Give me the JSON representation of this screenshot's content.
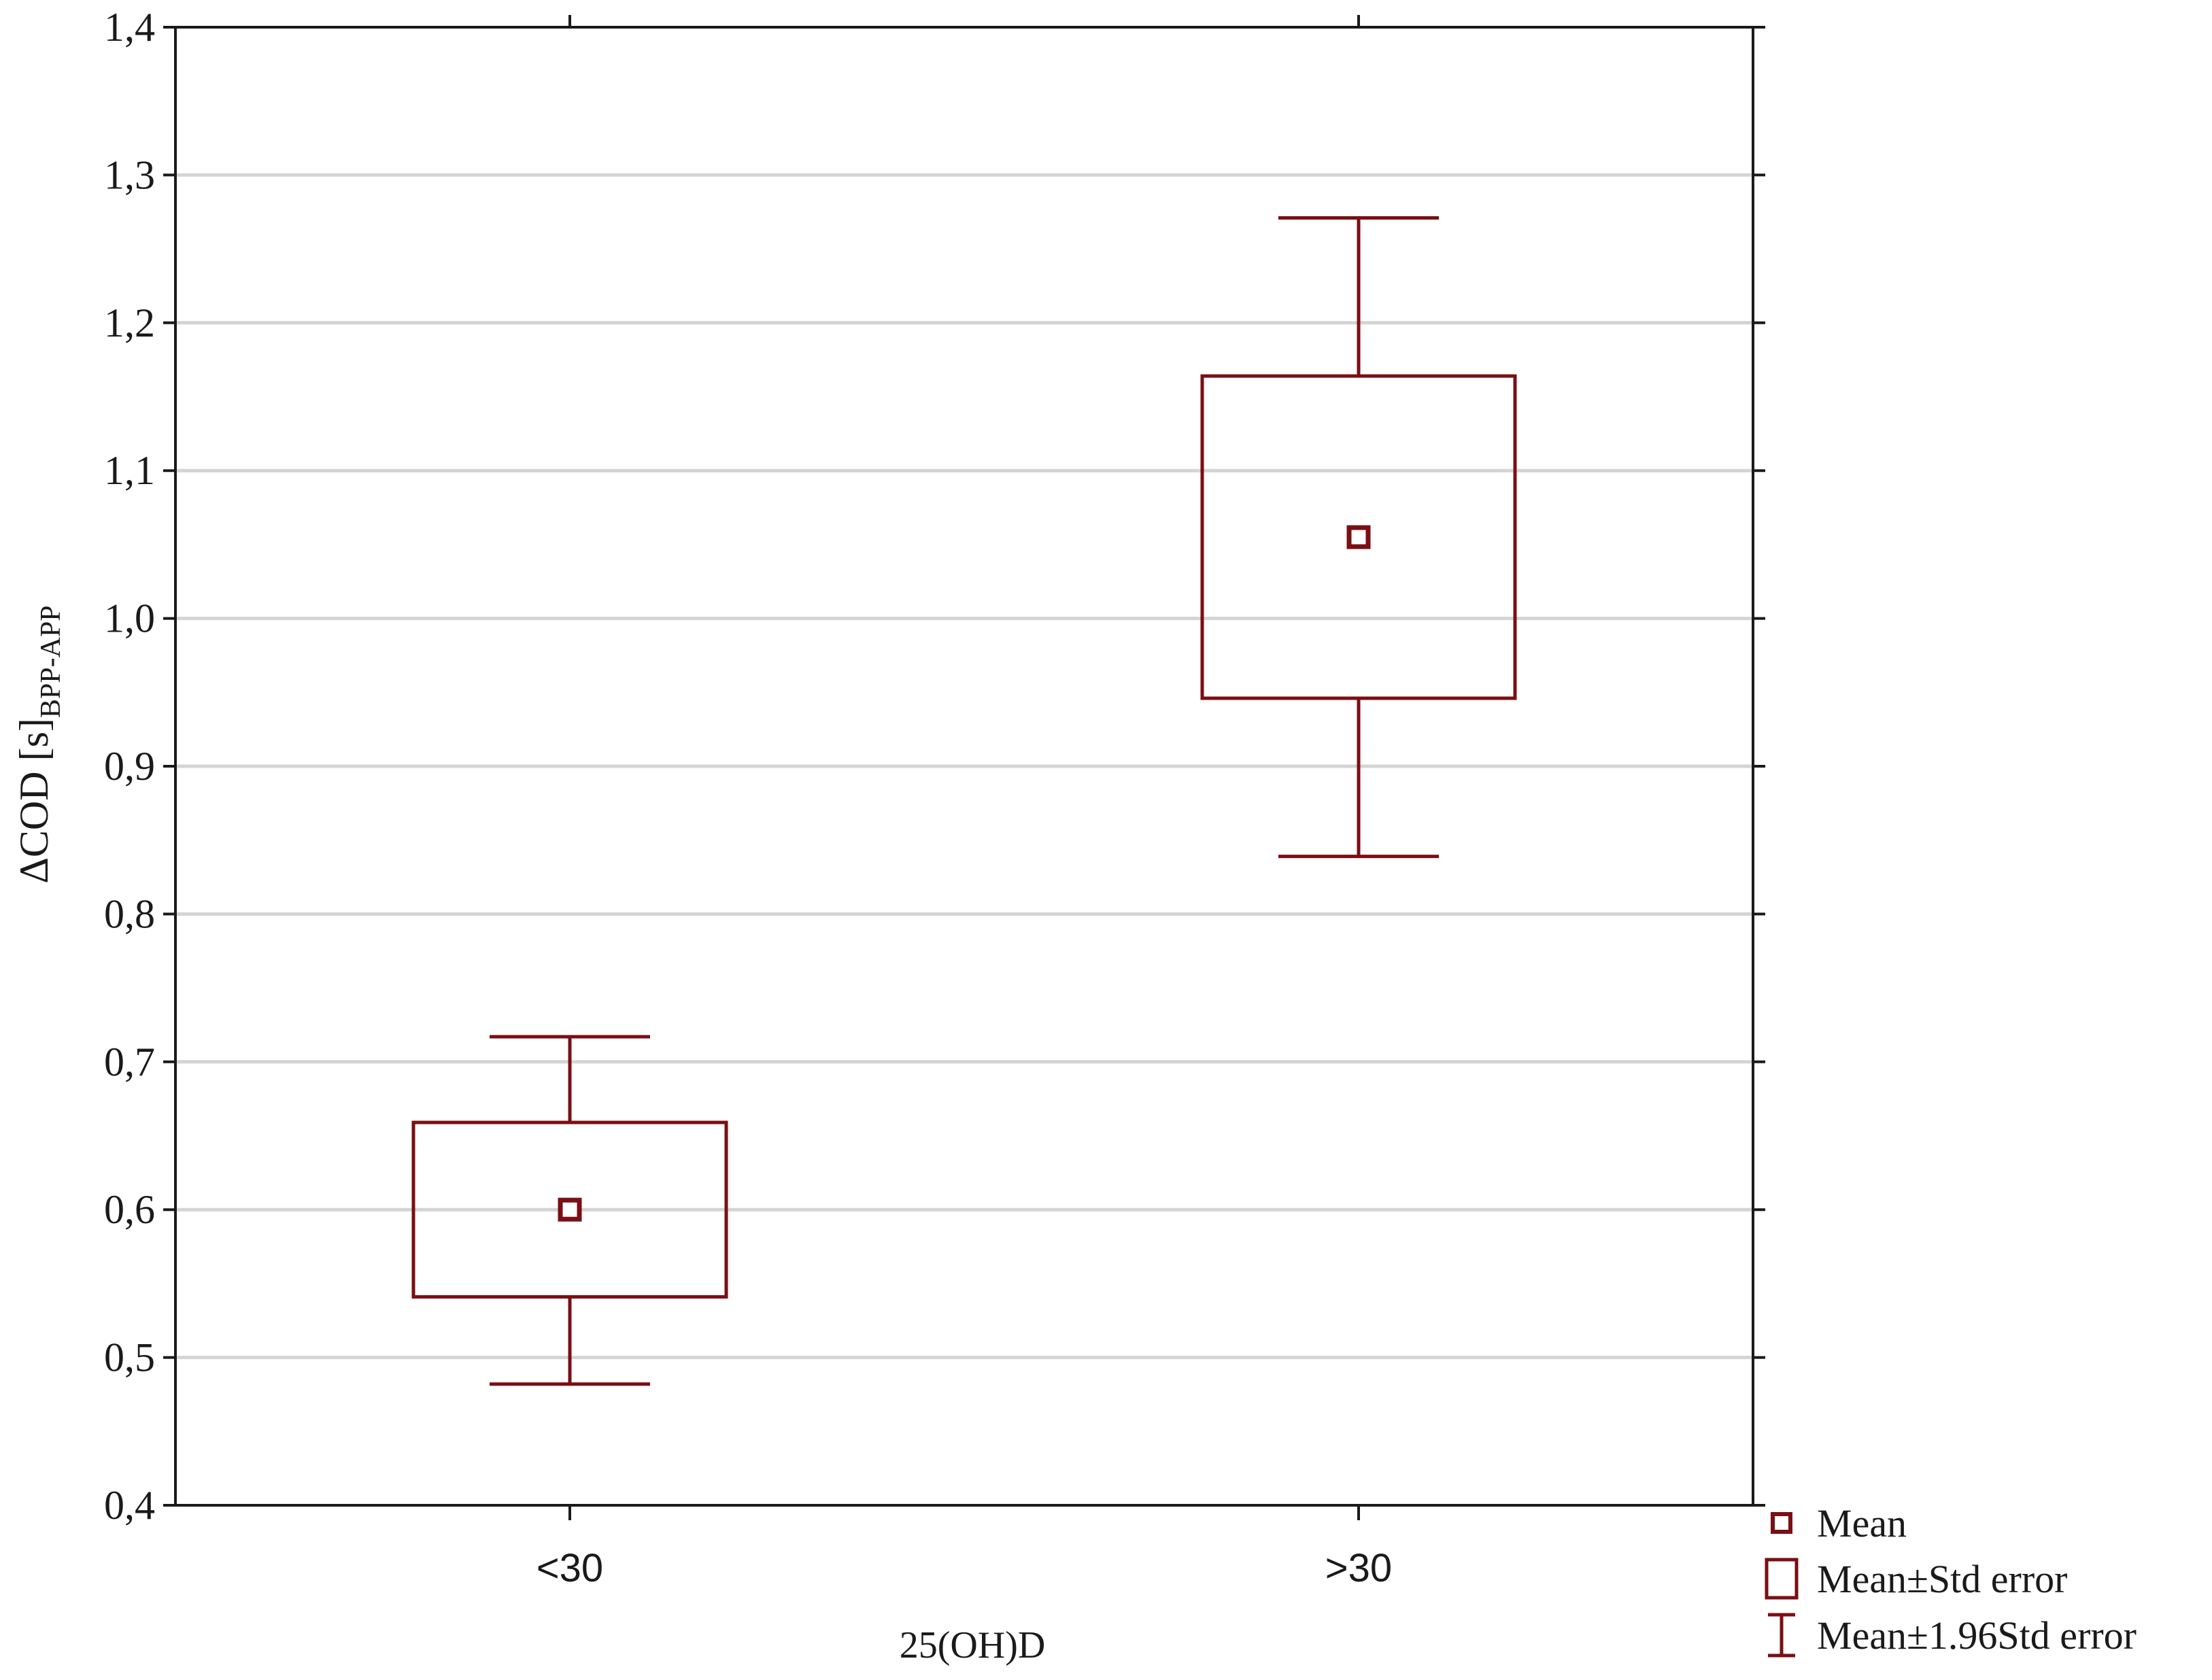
{
  "chart_data": {
    "type": "box",
    "xlabel": "25(OH)D",
    "ylabel": {
      "main": "ΔCOD [s]",
      "subscript": "BPP-APP"
    },
    "ylim": [
      0.4,
      1.4
    ],
    "yticks": [
      "0,4",
      "0,5",
      "0,6",
      "0,7",
      "0,8",
      "0,9",
      "1,0",
      "1,1",
      "1,2",
      "1,3",
      "1,4"
    ],
    "ytick_values": [
      0.4,
      0.5,
      0.6,
      0.7,
      0.8,
      0.9,
      1.0,
      1.1,
      1.2,
      1.3,
      1.4
    ],
    "grid": true,
    "categories": [
      "<30",
      ">30"
    ],
    "groups": [
      {
        "category": "<30",
        "mean": 0.6,
        "se_low": 0.541,
        "se_high": 0.659,
        "ci_low": 0.482,
        "ci_high": 0.717
      },
      {
        "category": ">30",
        "mean": 1.055,
        "se_low": 0.946,
        "se_high": 1.164,
        "ci_low": 0.839,
        "ci_high": 1.271
      }
    ],
    "legend": {
      "position": "bottom-right",
      "items": [
        {
          "symbol": "mean",
          "label": "Mean"
        },
        {
          "symbol": "box",
          "label": "Mean±Std error"
        },
        {
          "symbol": "whisker",
          "label": "Mean±1.96Std error"
        }
      ]
    },
    "colors": {
      "series": "#7a0f14",
      "grid": "#d4d4d4",
      "axis": "#1a1a1a"
    }
  }
}
